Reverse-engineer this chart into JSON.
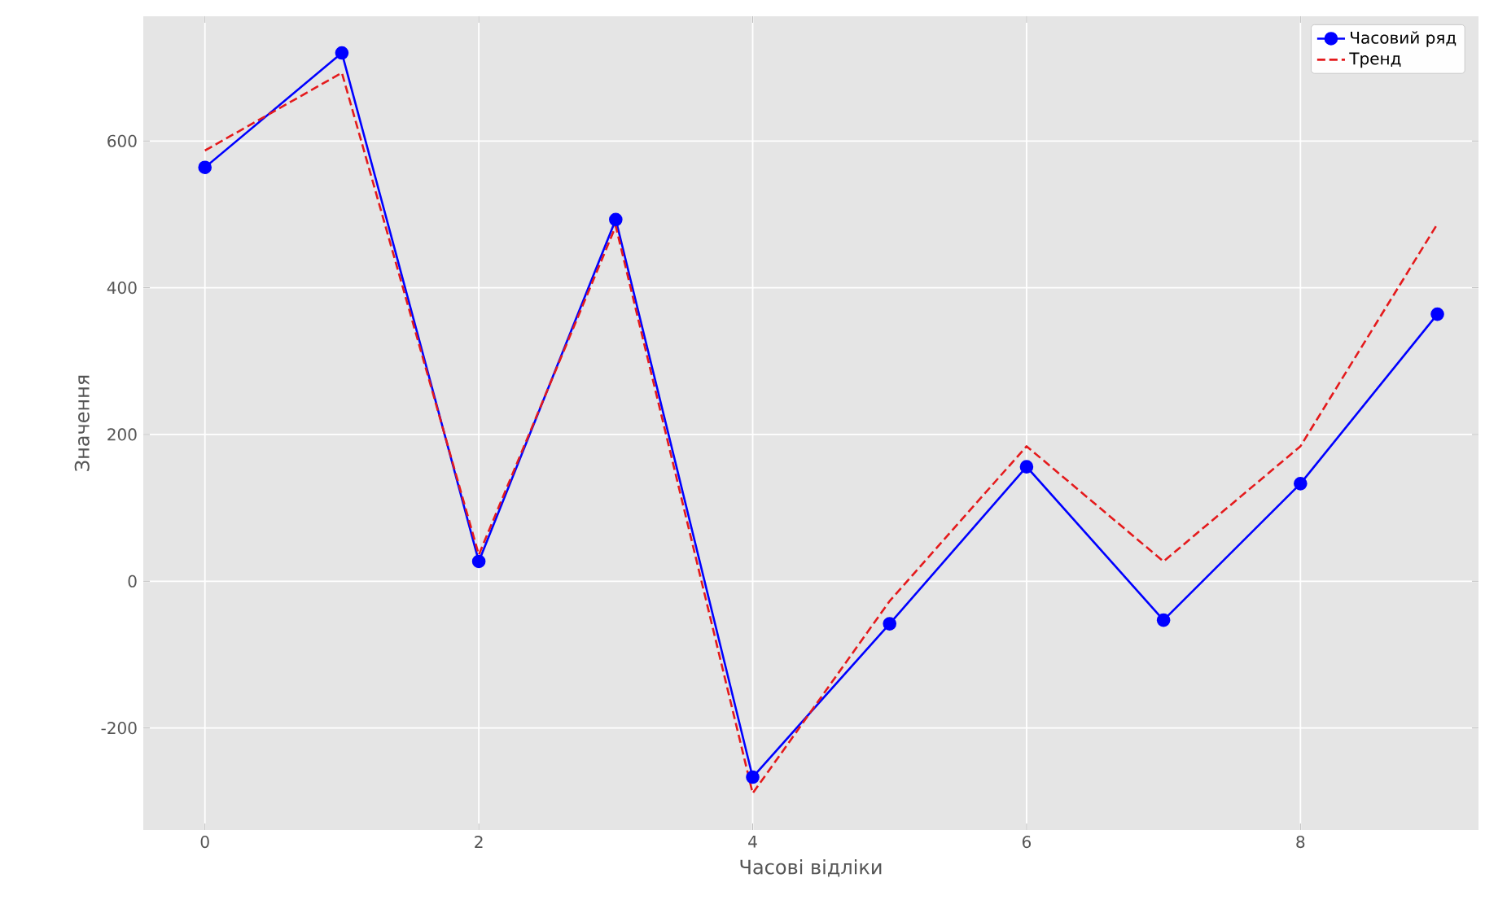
{
  "chart_data": {
    "type": "line",
    "xlabel": "Часові відліки",
    "ylabel": "Значення",
    "x": [
      0,
      1,
      2,
      3,
      4,
      5,
      6,
      7,
      8,
      9
    ],
    "series": [
      {
        "name": "Часовий ряд",
        "color": "#0000ff",
        "marker": "circle",
        "line_style": "solid",
        "values": [
          564,
          720,
          27,
          493,
          -267,
          -58,
          156,
          -53,
          133,
          364
        ]
      },
      {
        "name": "Тренд",
        "color": "#e41a1c",
        "marker": "none",
        "line_style": "dashed",
        "values": [
          587,
          693,
          36,
          484,
          -289,
          -27,
          184,
          27,
          184,
          487
        ]
      }
    ],
    "xlim": [
      -0.45,
      9.3
    ],
    "ylim": [
      -339,
      770
    ],
    "xticks": [
      0,
      2,
      4,
      6,
      8
    ],
    "yticks": [
      -200,
      0,
      200,
      400,
      600
    ],
    "grid": true,
    "legend": "top right"
  }
}
